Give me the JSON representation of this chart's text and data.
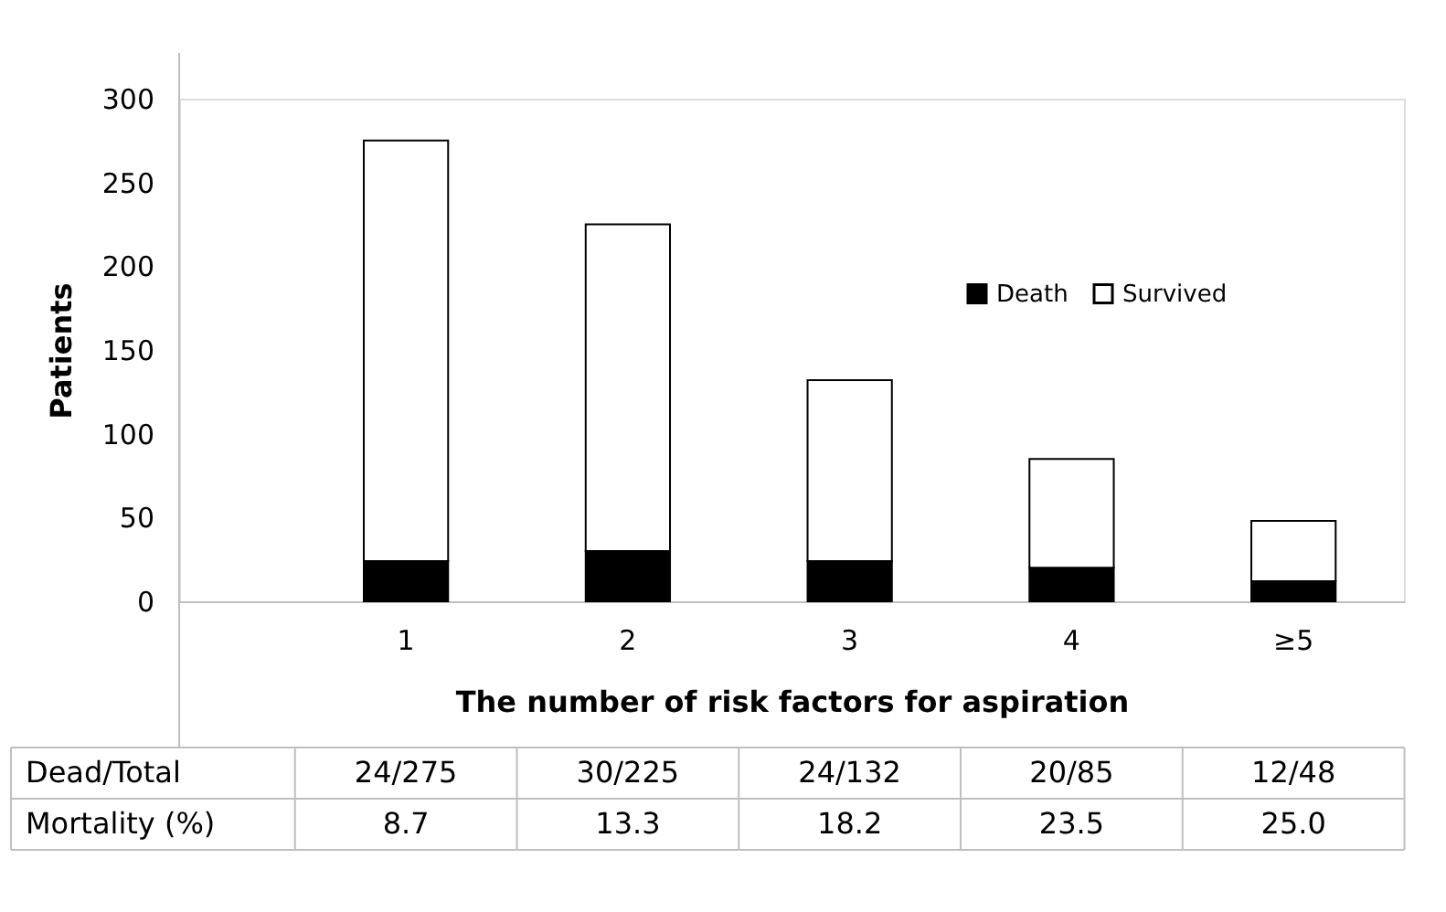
{
  "chart_data": {
    "type": "bar",
    "stacked": true,
    "ylabel": "Patients",
    "xlabel": "The number of risk factors for aspiration",
    "categories": [
      "1",
      "2",
      "3",
      "4",
      "≥5"
    ],
    "series": [
      {
        "name": "Death",
        "color": "#000000",
        "values": [
          24,
          30,
          24,
          20,
          12
        ]
      },
      {
        "name": "Survived",
        "color": "#ffffff",
        "values": [
          251,
          195,
          108,
          65,
          36
        ]
      }
    ],
    "ylim": [
      0,
      300
    ],
    "yticks": [
      0,
      50,
      100,
      150,
      200,
      250,
      300
    ],
    "grid": false,
    "legend": "right",
    "annotations": [
      "Dead/Total",
      "24/275",
      "30/225",
      "24/132",
      "20/85",
      "12/48",
      "Mortality (%)",
      "8.7",
      "13.3",
      "18.2",
      "23.5",
      "25.0"
    ]
  }
}
